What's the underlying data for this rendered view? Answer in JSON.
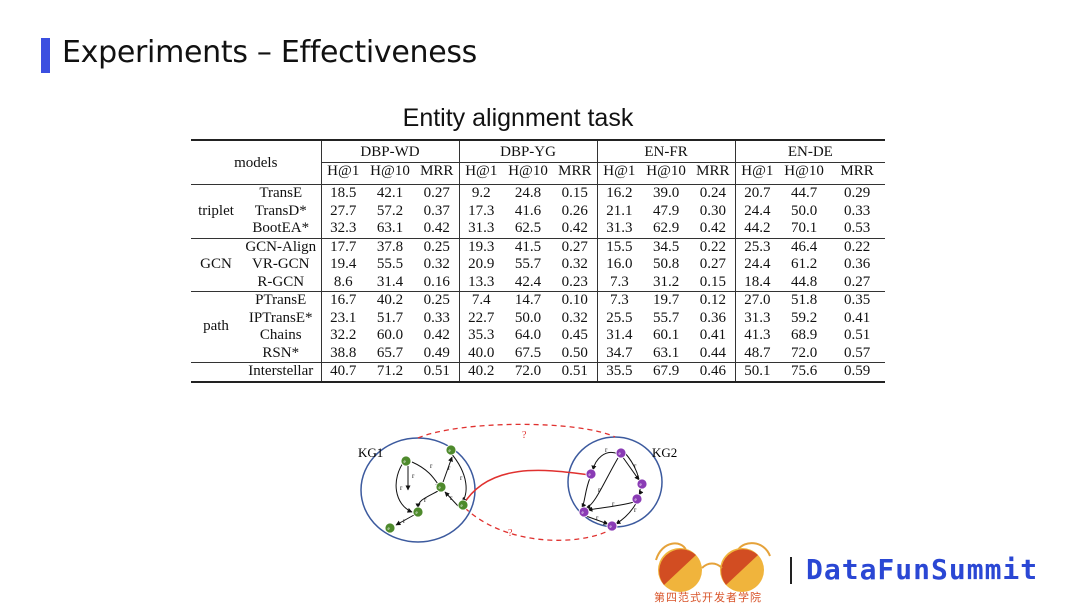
{
  "slide": {
    "title": "Experiments – Effectiveness",
    "subtitle": "Entity alignment task"
  },
  "table": {
    "models_header": "models",
    "datasets": [
      "DBP-WD",
      "DBP-YG",
      "EN-FR",
      "EN-DE"
    ],
    "metrics": [
      "H@1",
      "H@10",
      "MRR"
    ],
    "groups": [
      {
        "name": "triplet",
        "rows": [
          {
            "model": "TransE",
            "values": [
              "18.5",
              "42.1",
              "0.27",
              "9.2",
              "24.8",
              "0.15",
              "16.2",
              "39.0",
              "0.24",
              "20.7",
              "44.7",
              "0.29"
            ]
          },
          {
            "model": "TransD*",
            "values": [
              "27.7",
              "57.2",
              "0.37",
              "17.3",
              "41.6",
              "0.26",
              "21.1",
              "47.9",
              "0.30",
              "24.4",
              "50.0",
              "0.33"
            ]
          },
          {
            "model": "BootEA*",
            "values": [
              "32.3",
              "63.1",
              "0.42",
              "31.3",
              "62.5",
              "0.42",
              "31.3",
              "62.9",
              "0.42",
              "44.2",
              "70.1",
              "0.53"
            ]
          }
        ]
      },
      {
        "name": "GCN",
        "rows": [
          {
            "model": "GCN-Align",
            "values": [
              "17.7",
              "37.8",
              "0.25",
              "19.3",
              "41.5",
              "0.27",
              "15.5",
              "34.5",
              "0.22",
              "25.3",
              "46.4",
              "0.22"
            ]
          },
          {
            "model": "VR-GCN",
            "values": [
              "19.4",
              "55.5",
              "0.32",
              "20.9",
              "55.7",
              "0.32",
              "16.0",
              "50.8",
              "0.27",
              "24.4",
              "61.2",
              "0.36"
            ]
          },
          {
            "model": "R-GCN",
            "values": [
              "8.6",
              "31.4",
              "0.16",
              "13.3",
              "42.4",
              "0.23",
              "7.3",
              "31.2",
              "0.15",
              "18.4",
              "44.8",
              "0.27"
            ]
          }
        ]
      },
      {
        "name": "path",
        "rows": [
          {
            "model": "PTransE",
            "values": [
              "16.7",
              "40.2",
              "0.25",
              "7.4",
              "14.7",
              "0.10",
              "7.3",
              "19.7",
              "0.12",
              "27.0",
              "51.8",
              "0.35"
            ]
          },
          {
            "model": "IPTransE*",
            "values": [
              "23.1",
              "51.7",
              "0.33",
              "22.7",
              "50.0",
              "0.32",
              "25.5",
              "55.7",
              "0.36",
              "31.3",
              "59.2",
              "0.41"
            ]
          },
          {
            "model": "Chains",
            "values": [
              "32.2",
              "60.0",
              "0.42",
              "35.3",
              "64.0",
              "0.45",
              "31.4",
              "60.1",
              "0.41",
              "41.3",
              "68.9",
              "0.51"
            ]
          },
          {
            "model": "RSN*",
            "values": [
              "38.8",
              "65.7",
              "0.49",
              "40.0",
              "67.5",
              "0.50",
              "34.7",
              "63.1",
              "0.44",
              "48.7",
              "72.0",
              "0.57"
            ]
          }
        ]
      }
    ],
    "final_row": {
      "model": "Interstellar",
      "values": [
        "40.7",
        "71.2",
        "0.51",
        "40.2",
        "72.0",
        "0.51",
        "35.5",
        "67.9",
        "0.46",
        "50.1",
        "75.6",
        "0.59"
      ]
    }
  },
  "diagram": {
    "kg1_label": "KG1",
    "kg2_label": "KG2",
    "unknown_mark": "?",
    "relation_label": "r",
    "entity_label": "e",
    "kg1_color": "#4e8a2c",
    "kg2_color": "#8a3bb5",
    "link_color": "#e0312f",
    "ellipse_color": "#3c5a9e"
  },
  "branding": {
    "name": "DataFunSummit",
    "sub": "第四范式开发者学院",
    "accent": "#2a47d4"
  }
}
